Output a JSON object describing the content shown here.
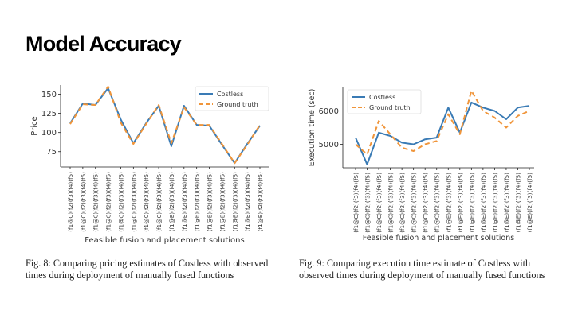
{
  "slide": {
    "title": "Model Accuracy"
  },
  "captions": {
    "fig8": "Fig. 8: Comparing pricing estimates of Costless with observed times during deployment of manually fused functions",
    "fig9": "Fig. 9: Comparing execution time estimate of Costless with observed times during deployment of manually fused functions"
  },
  "colors": {
    "costless": "#3a7bb5",
    "ground_truth": "#f0953a"
  },
  "chart_data": [
    {
      "type": "line",
      "title": "",
      "xlabel": "Feasible fusion and placement solutions",
      "ylabel": "Price",
      "ylim": [
        55,
        162
      ],
      "yticks": [
        75,
        100,
        125,
        150
      ],
      "legend": "top-right",
      "categories": [
        "(f1@C)(f2)(f3)(f4)(f5)",
        "(f1@C)(f2)(f3)(f4)(f5)",
        "(f1@C)(f2)(f3)(f4)(f5)",
        "(f1@C)(f2)(f3)(f4)(f5)",
        "(f1@C)(f2)(f3)(f4)(f5)",
        "(f1@C)(f2)(f3)(f4)(f5)",
        "(f1@C)(f2)(f3)(f4)(f5)",
        "(f1@C)(f2)(f3)(f4)(f5)",
        "(f1@E)(f2)(f3)(f4)(f5)",
        "(f1@E)(f2)(f3)(f4)(f5)",
        "(f1@E)(f2)(f3)(f4)(f5)",
        "(f1@E)(f2)(f3)(f4)(f5)",
        "(f1@E)(f2)(f3)(f4)(f5)",
        "(f1@E)(f2)(f3)(f4)(f5)",
        "(f1@E)(f2)(f3)(f4)(f5)",
        "(f1@E)(f2)(f3)(f4)(f5)"
      ],
      "series": [
        {
          "name": "Costless",
          "values": [
            112,
            138,
            136,
            158,
            117,
            86,
            112,
            135,
            82,
            135,
            110,
            109,
            84,
            60,
            85,
            109
          ]
        },
        {
          "name": "Ground truth",
          "values": [
            111,
            137,
            136,
            160,
            113,
            85,
            111,
            136,
            86,
            133,
            110,
            110,
            85,
            60,
            84,
            110
          ]
        }
      ]
    },
    {
      "type": "line",
      "title": "",
      "xlabel": "Feasible fusion and placement solutions",
      "ylabel": "Execution time (sec)",
      "ylim": [
        4300,
        6700
      ],
      "yticks": [
        5000,
        6000
      ],
      "legend": "top-left",
      "categories": [
        "(f1@C)(f2)(f3)(f4)(f5)",
        "(f1@C)(f2)(f3)(f4)(f5)",
        "(f1@C)(f2)(f3)(f4)(f5)",
        "(f1@C)(f2)(f3)(f4)(f5)",
        "(f1@C)(f2)(f3)(f4)(f5)",
        "(f1@C)(f2)(f3)(f4)(f5)",
        "(f1@C)(f2)(f3)(f4)(f5)",
        "(f1@C)(f2)(f3)(f4)(f5)",
        "(f1@E)(f2)(f3)(f4)(f5)",
        "(f1@E)(f2)(f3)(f4)(f5)",
        "(f1@E)(f2)(f3)(f4)(f5)",
        "(f1@E)(f2)(f3)(f4)(f5)",
        "(f1@E)(f2)(f3)(f4)(f5)",
        "(f1@E)(f2)(f3)(f4)(f5)",
        "(f1@E)(f2)(f3)(f4)(f5)",
        "(f1@E)(f2)(f3)(f4)(f5)"
      ],
      "series": [
        {
          "name": "Costless",
          "values": [
            5200,
            4400,
            5350,
            5250,
            5050,
            5000,
            5150,
            5200,
            6100,
            5350,
            6250,
            6100,
            6000,
            5750,
            6100,
            6150
          ]
        },
        {
          "name": "Ground truth",
          "values": [
            5000,
            4700,
            5700,
            5300,
            4900,
            4800,
            5000,
            5100,
            5900,
            5300,
            6600,
            6000,
            5800,
            5500,
            5850,
            6000
          ]
        }
      ]
    }
  ]
}
